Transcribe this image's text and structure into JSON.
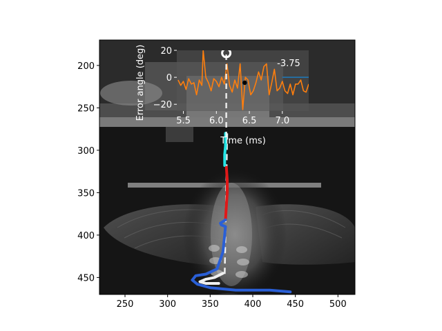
{
  "chart_data": [
    {
      "type": "image",
      "xlim": [
        220,
        520
      ],
      "ylim": [
        470,
        170
      ],
      "x_ticks": [
        250,
        300,
        350,
        400,
        450,
        500
      ],
      "y_ticks": [
        200,
        250,
        300,
        350,
        400,
        450
      ],
      "overlays": [
        {
          "name": "",
          "color": "#22e5e5",
          "x": [
            368,
            368,
            367,
            367
          ],
          "y": [
            280,
            295,
            305,
            318
          ]
        },
        {
          "name": "",
          "color": "#e01818",
          "x": [
            369,
            370,
            370,
            369,
            368
          ],
          "y": [
            320,
            335,
            350,
            365,
            382
          ]
        },
        {
          "name": "",
          "color": "#2a5fd6",
          "x": [
            368,
            362,
            363,
            368,
            367,
            365,
            358,
            345,
            333,
            329,
            335,
            350,
            380,
            420,
            444
          ],
          "y": [
            382,
            386,
            388,
            390,
            400,
            420,
            440,
            446,
            448,
            453,
            458,
            462,
            465,
            465,
            467
          ]
        },
        {
          "name": "",
          "color": "#f0f0f0",
          "x": [
            365,
            355,
            345,
            338,
            345,
            360
          ],
          "y": [
            445,
            450,
            452,
            455,
            457,
            457
          ]
        }
      ],
      "dashed_line": {
        "color": "#ffffff",
        "x": [
          370,
          367
        ],
        "y": [
          280,
          450
        ]
      }
    },
    {
      "type": "line",
      "xlabel": "Time (ms)",
      "ylabel": "Error angle (deg)",
      "xlim": [
        5.4,
        7.4
      ],
      "ylim": [
        -25,
        20
      ],
      "x_ticks": [
        "5.5",
        "6.0",
        "6.5",
        "7.0"
      ],
      "y_ticks": [
        "20",
        "0",
        "−20"
      ],
      "annotation": "-3.75",
      "series": [
        {
          "name": "",
          "color": "#ff7f0e",
          "x": [
            5.42,
            5.46,
            5.5,
            5.54,
            5.58,
            5.62,
            5.66,
            5.7,
            5.74,
            5.78,
            5.8,
            5.84,
            5.88,
            5.92,
            5.96,
            6.0,
            6.04,
            6.08,
            6.12,
            6.16,
            6.2,
            6.24,
            6.28,
            6.32,
            6.36,
            6.4,
            6.44,
            6.48,
            6.52,
            6.56,
            6.6,
            6.64,
            6.68,
            6.72,
            6.76,
            6.8,
            6.84,
            6.88,
            6.92,
            6.96,
            7.0,
            7.04,
            7.08,
            7.12,
            7.16,
            7.2,
            7.24,
            7.28,
            7.32,
            7.36,
            7.4
          ],
          "y": [
            -2,
            -6,
            -3,
            -9,
            -1,
            -5,
            -4,
            -13,
            -2,
            -6,
            20,
            0,
            -4,
            -10,
            -1,
            -3,
            -7,
            0,
            -5,
            10,
            -6,
            -11,
            -2,
            -8,
            10,
            -24,
            0,
            -2,
            -13,
            -10,
            -4,
            4,
            -2,
            8,
            10,
            -13,
            -4,
            6,
            -10,
            -8,
            -3,
            -10,
            -12,
            -5,
            -13,
            -5,
            -5,
            -2,
            -10,
            -11,
            -5
          ]
        },
        {
          "name": "",
          "color": "#1f77b4",
          "x": [
            7.0,
            7.4
          ],
          "y": [
            0,
            0
          ]
        }
      ],
      "marker_point": {
        "x": 6.43,
        "y": -4
      },
      "vline_x": 6.15
    }
  ]
}
